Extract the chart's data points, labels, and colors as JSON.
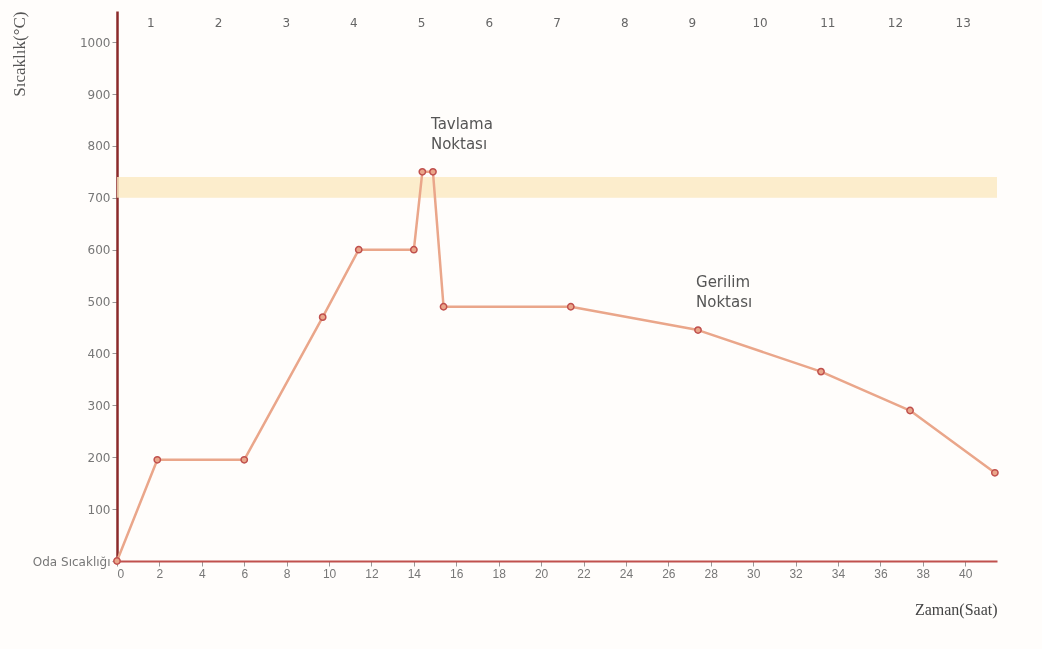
{
  "chart_data": {
    "type": "line",
    "xlabel": "Zaman(Saat)",
    "ylabel": "Sıcaklık(°C)",
    "x": [
      0,
      1.9,
      6,
      9.7,
      11.4,
      14.0,
      14.4,
      14.9,
      15.4,
      21.4,
      27.4,
      33.2,
      37.4,
      41.4
    ],
    "series": [
      {
        "color": "#eaa68a",
        "values": [
          0,
          195,
          195,
          470,
          600,
          600,
          750,
          750,
          490,
          490,
          445,
          365,
          290,
          170
        ]
      }
    ],
    "xlim": [
      0,
      41.5
    ],
    "xticks": [
      0,
      2,
      4,
      6,
      8,
      10,
      12,
      14,
      16,
      18,
      20,
      22,
      24,
      26,
      28,
      30,
      32,
      34,
      36,
      38,
      40
    ],
    "ylim": [
      0,
      1060
    ],
    "yticks": [
      {
        "value": 0,
        "label": "Oda Sıcaklığı"
      },
      100,
      200,
      300,
      400,
      500,
      600,
      700,
      800,
      900,
      1000
    ],
    "grid": false,
    "marker": "circle",
    "line_style": "solid",
    "bands": [
      {
        "axis": "y",
        "from": 700,
        "to": 740,
        "color": "#fbe8c0"
      }
    ],
    "annotations": [
      {
        "text": "Tavlama Noktası",
        "x": 14.9,
        "y": 750
      },
      {
        "text": "Gerilim Noktası",
        "x": 27.4,
        "y": 445
      },
      "1",
      "2",
      "3",
      "4",
      "5",
      "6",
      "7",
      "8",
      "9",
      "10",
      "11",
      "12",
      "13"
    ]
  }
}
